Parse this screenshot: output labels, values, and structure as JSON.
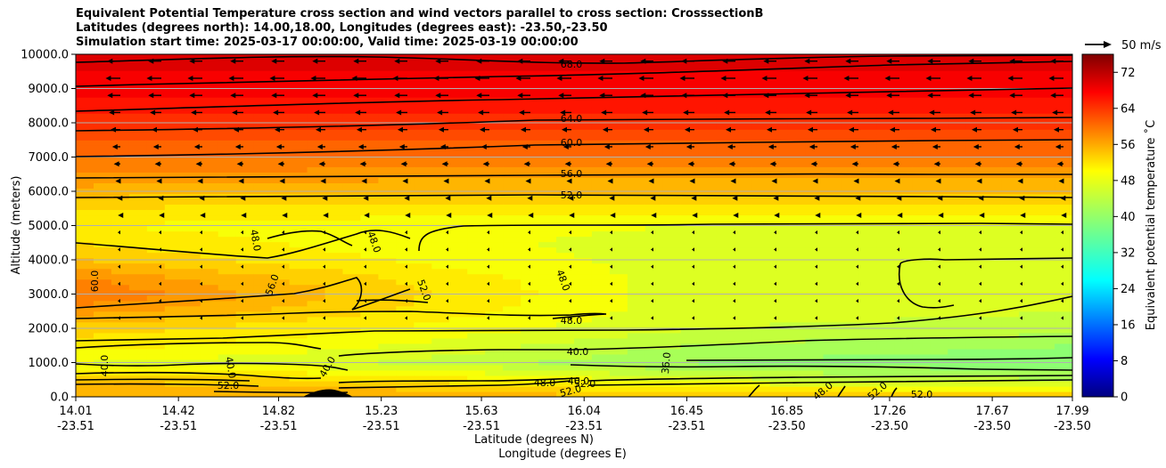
{
  "chart_data": {
    "type": "heatmap",
    "title_lines": [
      "Equivalent Potential Temperature cross section and wind vectors parallel to cross section: CrosssectionB",
      "Latitudes (degrees north): 14.00,18.00, Longitudes (degrees east): -23.50,-23.50",
      "Simulation start time: 2025-03-17 00:00:00, Valid time: 2025-03-19 00:00:00"
    ],
    "xlabel_lines": [
      "Latitude (degrees N)",
      "Longitude (degrees E)"
    ],
    "ylabel": "Altitude (meters)",
    "ylim": [
      0,
      10000
    ],
    "y_ticks": [
      "0.0",
      "1000.0",
      "2000.0",
      "3000.0",
      "4000.0",
      "5000.0",
      "6000.0",
      "7000.0",
      "8000.0",
      "9000.0",
      "10000.0"
    ],
    "x_ticks": [
      {
        "lat": "14.01",
        "lon": "-23.51"
      },
      {
        "lat": "14.42",
        "lon": "-23.51"
      },
      {
        "lat": "14.82",
        "lon": "-23.51"
      },
      {
        "lat": "15.23",
        "lon": "-23.51"
      },
      {
        "lat": "15.63",
        "lon": "-23.51"
      },
      {
        "lat": "16.04",
        "lon": "-23.51"
      },
      {
        "lat": "16.45",
        "lon": "-23.51"
      },
      {
        "lat": "16.85",
        "lon": "-23.50"
      },
      {
        "lat": "17.26",
        "lon": "-23.50"
      },
      {
        "lat": "17.67",
        "lon": "-23.50"
      },
      {
        "lat": "17.99",
        "lon": "-23.50"
      }
    ],
    "grid": "horizontal",
    "colorbar": {
      "label": "Equivalent potential temperature $^\\circ$C",
      "label_display": "Equivalent potential temperature ˚C",
      "range": [
        0,
        76
      ],
      "ticks": [
        "0",
        "8",
        "16",
        "24",
        "32",
        "40",
        "48",
        "56",
        "64",
        "72"
      ],
      "colormap": "jet"
    },
    "quiver_key": "50 m/s",
    "contour_labels": [
      "68.0",
      "64.0",
      "60.0",
      "56.0",
      "52.0",
      "48.0",
      "48.0",
      "48.0",
      "56.0",
      "60.0",
      "52.0",
      "48.0",
      "40.0",
      "40.0",
      "40.0",
      "40.0",
      "40.0",
      "36.0",
      "52.0",
      "48.0",
      "52.0",
      "48.0",
      "52.0",
      "52.0",
      "52.0"
    ],
    "profile_altitudes_m": [
      0,
      500,
      1000,
      1500,
      2000,
      2500,
      3000,
      3500,
      4000,
      4500,
      5000,
      5500,
      6000,
      6500,
      7000,
      7500,
      8000,
      8500,
      9000,
      9500,
      10000
    ],
    "profiles": [
      {
        "lat": 14.01,
        "theta_e": [
          54,
          52,
          46,
          49,
          51,
          55,
          58,
          56,
          52,
          50,
          48,
          50,
          53,
          56,
          58,
          60,
          63,
          65,
          67,
          68,
          69
        ]
      },
      {
        "lat": 15.23,
        "theta_e": [
          54,
          50,
          44,
          46,
          48,
          50,
          51,
          50,
          48,
          47,
          47,
          49,
          52,
          55,
          58,
          60,
          63,
          65,
          67,
          68,
          69
        ]
      },
      {
        "lat": 16.45,
        "theta_e": [
          52,
          45,
          40,
          42,
          44,
          45,
          45,
          45,
          45,
          45,
          46,
          49,
          52,
          55,
          58,
          60,
          63,
          65,
          67,
          68,
          69
        ]
      },
      {
        "lat": 17.99,
        "theta_e": [
          52,
          42,
          38,
          40,
          43,
          44,
          45,
          45,
          45,
          45,
          46,
          49,
          52,
          55,
          58,
          60,
          63,
          65,
          67,
          68,
          69
        ]
      }
    ],
    "wind_rows": [
      {
        "altitude_m": 9800,
        "u": -8
      },
      {
        "altitude_m": 9300,
        "u": -9
      },
      {
        "altitude_m": 8800,
        "u": -8
      },
      {
        "altitude_m": 8300,
        "u": -7
      },
      {
        "altitude_m": 7800,
        "u": -6
      },
      {
        "altitude_m": 7300,
        "u": -5
      },
      {
        "altitude_m": 6800,
        "u": -4
      },
      {
        "altitude_m": 6300,
        "u": -3
      },
      {
        "altitude_m": 5800,
        "u": -2
      },
      {
        "altitude_m": 5300,
        "u": -1.5
      },
      {
        "altitude_m": 4800,
        "u": -1
      },
      {
        "altitude_m": 4300,
        "u": -0.8
      },
      {
        "altitude_m": 3800,
        "u": -0.5
      },
      {
        "altitude_m": 3300,
        "u": -0.5
      },
      {
        "altitude_m": 2800,
        "u": -0.4
      },
      {
        "altitude_m": 2300,
        "u": -0.3
      }
    ]
  }
}
